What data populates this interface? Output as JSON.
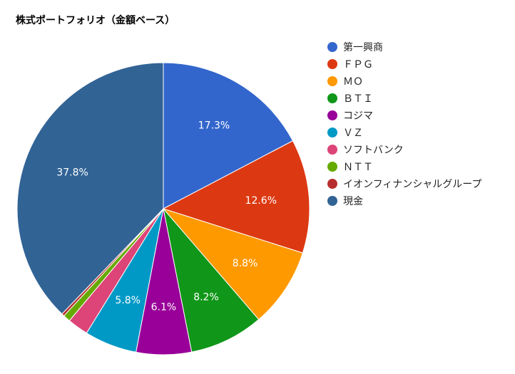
{
  "chart_data": {
    "type": "pie",
    "title": "株式ポートフォリオ（金額ベース）",
    "legend_position": "right",
    "slices": [
      {
        "label": "第一興商",
        "value": 17.3,
        "display": "17.3%",
        "color": "#3366cc"
      },
      {
        "label": "ＦＰＧ",
        "value": 12.6,
        "display": "12.6%",
        "color": "#dc3912"
      },
      {
        "label": "ＭＯ",
        "value": 8.8,
        "display": "8.8%",
        "color": "#ff9900"
      },
      {
        "label": "ＢＴＩ",
        "value": 8.2,
        "display": "8.2%",
        "color": "#109618"
      },
      {
        "label": "コジマ",
        "value": 6.1,
        "display": "6.1%",
        "color": "#990099"
      },
      {
        "label": "ＶＺ",
        "value": 5.8,
        "display": "5.8%",
        "color": "#0099c6"
      },
      {
        "label": "ソフトバンク",
        "value": 2.3,
        "display": "",
        "color": "#dd4477"
      },
      {
        "label": "ＮＴＴ",
        "value": 0.8,
        "display": "",
        "color": "#66aa00"
      },
      {
        "label": "イオンフィナンシャルグループ",
        "value": 0.3,
        "display": "",
        "color": "#b82e2e"
      },
      {
        "label": "現金",
        "value": 37.8,
        "display": "37.8%",
        "color": "#316395"
      }
    ]
  }
}
